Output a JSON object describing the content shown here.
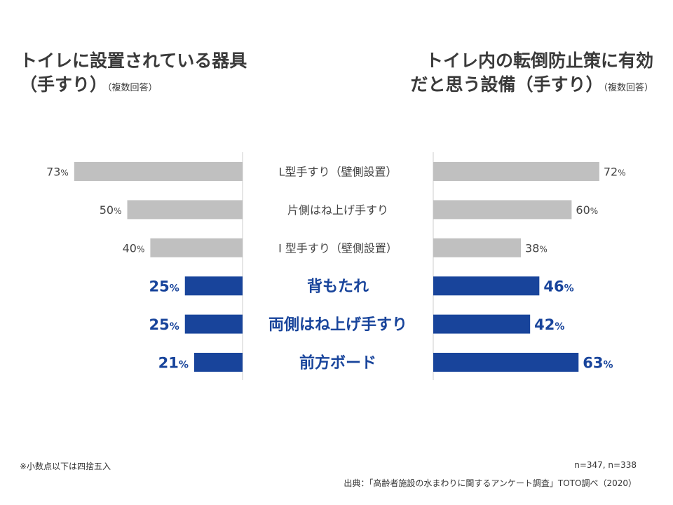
{
  "titles": {
    "left_line1": "トイレに設置されている器具",
    "left_line2": "（手すり）",
    "left_sub": "（複数回答）",
    "right_line1": "トイレ内の転倒防止策に有効",
    "right_line2": "だと思う設備（手すり）",
    "right_sub": "（複数回答）"
  },
  "chart_data": {
    "type": "bar",
    "layout": "butterfly",
    "unit": "%",
    "categories": [
      "L型手すり（壁側設置）",
      "片側はね上げ手すり",
      "I 型手すり（壁側設置）",
      "背もたれ",
      "両側はね上げ手すり",
      "前方ボード"
    ],
    "highlighted": [
      false,
      false,
      false,
      true,
      true,
      true
    ],
    "series": [
      {
        "side": "left",
        "values": [
          73,
          50,
          40,
          25,
          25,
          21
        ]
      },
      {
        "side": "right",
        "values": [
          72,
          60,
          38,
          46,
          42,
          63
        ]
      }
    ],
    "colors": {
      "normal_bar": "#c0c0c0",
      "highlight_bar": "#18449b",
      "normal_text": "#444444",
      "highlight_text": "#18449b",
      "axis_line": "#cccccc"
    }
  },
  "footer": {
    "note": "※小数点以下は四捨五入",
    "sample": "n=347, n=338",
    "source": "出典：「高齢者施設の水まわりに関するアンケート調査」TOTO調べ（2020）"
  }
}
